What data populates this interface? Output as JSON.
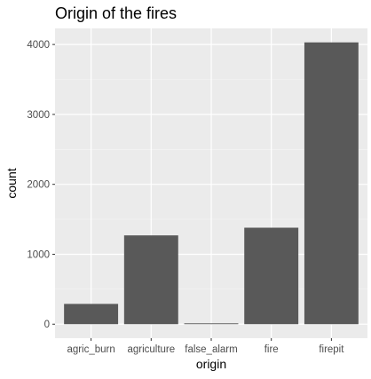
{
  "colors": {
    "panel_background": "#ebebeb",
    "grid_major": "#ffffff",
    "grid_minor": "#f5f5f5",
    "bar_fill": "#595959",
    "tick_color": "#333333",
    "tick_label_color": "#4d4d4d"
  },
  "chart_data": {
    "type": "bar",
    "title": "Origin of the fires",
    "xlabel": "origin",
    "ylabel": "count",
    "categories": [
      "agric_burn",
      "agriculture",
      "false_alarm",
      "fire",
      "firepit"
    ],
    "values": [
      290,
      1270,
      12,
      1380,
      4030
    ],
    "ylim": [
      -200,
      4230
    ],
    "yticks": [
      0,
      1000,
      2000,
      3000,
      4000
    ],
    "ytick_labels": [
      "0",
      "1000",
      "2000",
      "3000",
      "4000"
    ],
    "grid": true,
    "legend": "none"
  }
}
